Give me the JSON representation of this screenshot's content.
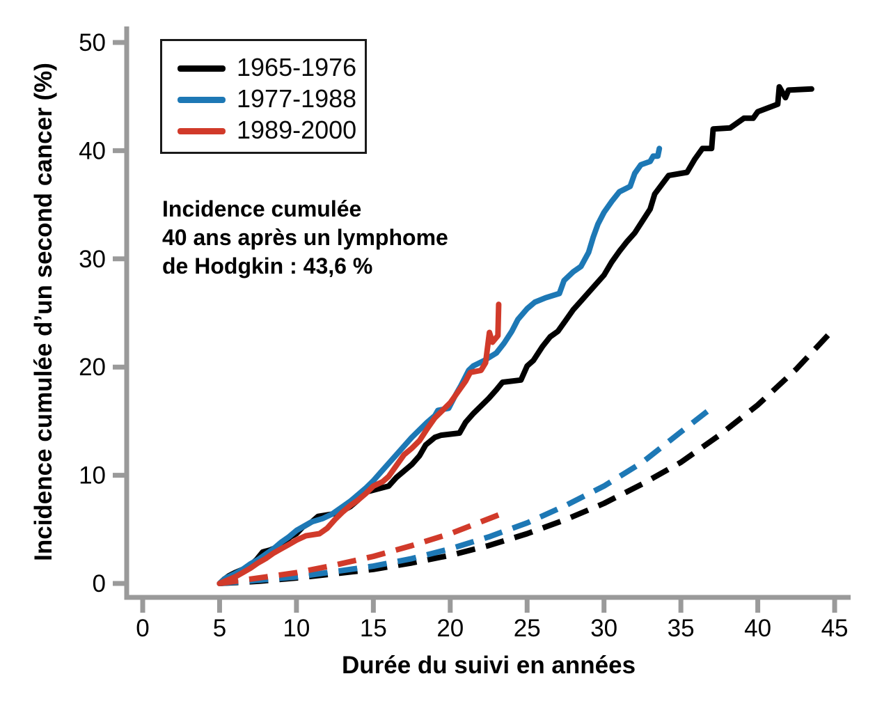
{
  "chart_data": {
    "type": "line",
    "xlabel": "Durée du suivi en années",
    "ylabel": "Incidence cumulée d’un second cancer (%)",
    "xticks": [
      0,
      5,
      10,
      15,
      20,
      25,
      30,
      35,
      40,
      45
    ],
    "yticks": [
      0,
      10,
      20,
      30,
      40,
      50
    ],
    "xlim": [
      0,
      46
    ],
    "ylim": [
      0,
      51.5
    ],
    "grid": false,
    "legend_position": "top-left",
    "axis_color": "#9a9a9a",
    "tick_label_color": "#000000",
    "annotation": {
      "lines": [
        "Incidence cumulée",
        "40 ans après un lymphome",
        "de Hodgkin : 43,6 %"
      ]
    },
    "series": [
      {
        "name": "1965-1976",
        "color": "#000000",
        "style": "solid",
        "points": [
          [
            5,
            0
          ],
          [
            5.3,
            0.4
          ],
          [
            5.6,
            0.7
          ],
          [
            6,
            1.0
          ],
          [
            6.5,
            1.3
          ],
          [
            7,
            1.7
          ],
          [
            7.4,
            2.2
          ],
          [
            7.8,
            2.9
          ],
          [
            8.3,
            3.1
          ],
          [
            8.8,
            3.4
          ],
          [
            9.2,
            3.8
          ],
          [
            9.6,
            4.3
          ],
          [
            10,
            4.6
          ],
          [
            10.4,
            5.2
          ],
          [
            11,
            5.7
          ],
          [
            11.4,
            6.2
          ],
          [
            12.3,
            6.4
          ],
          [
            13,
            6.7
          ],
          [
            13.5,
            7.1
          ],
          [
            14,
            7.7
          ],
          [
            14.4,
            8.4
          ],
          [
            15.2,
            8.7
          ],
          [
            16,
            9.0
          ],
          [
            16.5,
            9.8
          ],
          [
            17,
            10.4
          ],
          [
            17.5,
            11.0
          ],
          [
            18,
            11.8
          ],
          [
            18.4,
            12.8
          ],
          [
            19,
            13.5
          ],
          [
            19.4,
            13.7
          ],
          [
            20.6,
            13.9
          ],
          [
            21,
            14.9
          ],
          [
            21.5,
            15.7
          ],
          [
            22,
            16.4
          ],
          [
            22.5,
            17.1
          ],
          [
            23,
            17.9
          ],
          [
            23.4,
            18.6
          ],
          [
            24.6,
            18.8
          ],
          [
            25,
            20.1
          ],
          [
            25.4,
            20.6
          ],
          [
            26,
            21.9
          ],
          [
            26.5,
            22.8
          ],
          [
            27,
            23.3
          ],
          [
            27.5,
            24.3
          ],
          [
            28,
            25.3
          ],
          [
            28.5,
            26.1
          ],
          [
            29,
            26.9
          ],
          [
            29.5,
            27.7
          ],
          [
            30,
            28.5
          ],
          [
            30.5,
            29.7
          ],
          [
            31,
            30.7
          ],
          [
            31.5,
            31.6
          ],
          [
            32,
            32.4
          ],
          [
            32.5,
            33.5
          ],
          [
            33,
            34.6
          ],
          [
            33.3,
            36.0
          ],
          [
            34.2,
            37.7
          ],
          [
            35.4,
            38.0
          ],
          [
            35.9,
            39.2
          ],
          [
            36.4,
            40.2
          ],
          [
            37.0,
            40.2
          ],
          [
            37.1,
            42.0
          ],
          [
            38.2,
            42.1
          ],
          [
            39.1,
            43.0
          ],
          [
            39.7,
            43.0
          ],
          [
            40,
            43.6
          ],
          [
            41.3,
            44.3
          ],
          [
            41.4,
            45.9
          ],
          [
            41.8,
            44.9
          ],
          [
            42,
            45.6
          ],
          [
            43.5,
            45.7
          ]
        ]
      },
      {
        "name": "1977-1988",
        "color": "#1d78b5",
        "style": "solid",
        "points": [
          [
            5,
            0
          ],
          [
            5.4,
            0.5
          ],
          [
            6,
            0.9
          ],
          [
            6.5,
            1.3
          ],
          [
            7,
            1.8
          ],
          [
            7.5,
            2.2
          ],
          [
            8,
            2.7
          ],
          [
            8.5,
            3.2
          ],
          [
            9,
            3.8
          ],
          [
            9.5,
            4.3
          ],
          [
            10,
            4.9
          ],
          [
            10.5,
            5.3
          ],
          [
            11,
            5.7
          ],
          [
            11.7,
            6.0
          ],
          [
            12.3,
            6.4
          ],
          [
            13,
            7.1
          ],
          [
            13.5,
            7.6
          ],
          [
            14,
            8.2
          ],
          [
            14.5,
            8.8
          ],
          [
            15,
            9.5
          ],
          [
            15.5,
            10.3
          ],
          [
            16,
            11.1
          ],
          [
            16.5,
            11.9
          ],
          [
            17,
            12.7
          ],
          [
            17.5,
            13.5
          ],
          [
            18,
            14.2
          ],
          [
            18.5,
            14.9
          ],
          [
            19,
            15.5
          ],
          [
            19.2,
            16.0
          ],
          [
            19.9,
            16.2
          ],
          [
            20.3,
            17.3
          ],
          [
            20.7,
            18.3
          ],
          [
            21.2,
            19.7
          ],
          [
            21.5,
            20.1
          ],
          [
            22.2,
            20.6
          ],
          [
            23,
            21.3
          ],
          [
            23.5,
            22.2
          ],
          [
            24,
            23.3
          ],
          [
            24.4,
            24.4
          ],
          [
            25,
            25.4
          ],
          [
            25.5,
            26.0
          ],
          [
            26.2,
            26.4
          ],
          [
            27.1,
            26.8
          ],
          [
            27.4,
            28.0
          ],
          [
            28,
            28.8
          ],
          [
            28.5,
            29.3
          ],
          [
            29,
            30.6
          ],
          [
            29.3,
            32.0
          ],
          [
            29.6,
            33.2
          ],
          [
            30,
            34.3
          ],
          [
            30.5,
            35.3
          ],
          [
            31,
            36.2
          ],
          [
            31.7,
            36.7
          ],
          [
            32,
            37.9
          ],
          [
            32.4,
            38.7
          ],
          [
            33,
            39.0
          ],
          [
            33.2,
            39.5
          ],
          [
            33.5,
            39.5
          ],
          [
            33.6,
            40.2
          ]
        ]
      },
      {
        "name": "1989-2000",
        "color": "#d13a2a",
        "style": "solid",
        "points": [
          [
            5,
            0
          ],
          [
            5.5,
            0.3
          ],
          [
            6,
            0.6
          ],
          [
            6.5,
            1.0
          ],
          [
            7,
            1.4
          ],
          [
            7.5,
            1.9
          ],
          [
            8,
            2.3
          ],
          [
            8.5,
            2.8
          ],
          [
            9,
            3.2
          ],
          [
            9.5,
            3.6
          ],
          [
            10,
            4.0
          ],
          [
            10.6,
            4.4
          ],
          [
            11.5,
            4.6
          ],
          [
            12,
            5.1
          ],
          [
            12.5,
            5.9
          ],
          [
            13,
            6.6
          ],
          [
            13.5,
            7.2
          ],
          [
            14,
            7.7
          ],
          [
            14.5,
            8.3
          ],
          [
            15,
            9.0
          ],
          [
            15.6,
            9.4
          ],
          [
            16,
            9.9
          ],
          [
            16.5,
            10.9
          ],
          [
            17,
            11.9
          ],
          [
            17.5,
            12.5
          ],
          [
            18,
            13.2
          ],
          [
            18.5,
            14.3
          ],
          [
            19,
            15.3
          ],
          [
            19.5,
            16.0
          ],
          [
            20,
            16.7
          ],
          [
            20.5,
            17.7
          ],
          [
            21,
            18.7
          ],
          [
            21.3,
            19.5
          ],
          [
            22,
            19.7
          ],
          [
            22.3,
            20.4
          ],
          [
            22.55,
            23.2
          ],
          [
            22.75,
            22.3
          ],
          [
            23.1,
            22.9
          ],
          [
            23.15,
            25.8
          ]
        ]
      }
    ],
    "expected_series": [
      {
        "color": "#000000",
        "style": "dashed",
        "points": [
          [
            5,
            0
          ],
          [
            7.5,
            0.2
          ],
          [
            10,
            0.5
          ],
          [
            12.5,
            0.9
          ],
          [
            15,
            1.3
          ],
          [
            17.5,
            1.9
          ],
          [
            20,
            2.6
          ],
          [
            22.5,
            3.5
          ],
          [
            25,
            4.6
          ],
          [
            27.5,
            5.9
          ],
          [
            30,
            7.4
          ],
          [
            32.5,
            9.2
          ],
          [
            35,
            11.2
          ],
          [
            37.5,
            13.7
          ],
          [
            40,
            16.5
          ],
          [
            42.5,
            19.8
          ],
          [
            45,
            23.6
          ]
        ]
      },
      {
        "color": "#1d78b5",
        "style": "dashed",
        "points": [
          [
            5,
            0
          ],
          [
            7.5,
            0.3
          ],
          [
            10,
            0.6
          ],
          [
            12.5,
            1.1
          ],
          [
            15,
            1.6
          ],
          [
            17.5,
            2.3
          ],
          [
            20,
            3.2
          ],
          [
            22.5,
            4.3
          ],
          [
            25,
            5.6
          ],
          [
            27.5,
            7.2
          ],
          [
            30,
            9.0
          ],
          [
            32.5,
            11.2
          ],
          [
            35,
            14.0
          ],
          [
            36.8,
            16.0
          ]
        ]
      },
      {
        "color": "#d13a2a",
        "style": "dashed",
        "points": [
          [
            5,
            0
          ],
          [
            7.5,
            0.5
          ],
          [
            10,
            1.0
          ],
          [
            12.5,
            1.7
          ],
          [
            15,
            2.5
          ],
          [
            17.5,
            3.5
          ],
          [
            20,
            4.6
          ],
          [
            22,
            5.7
          ],
          [
            23.8,
            6.7
          ]
        ]
      }
    ]
  }
}
